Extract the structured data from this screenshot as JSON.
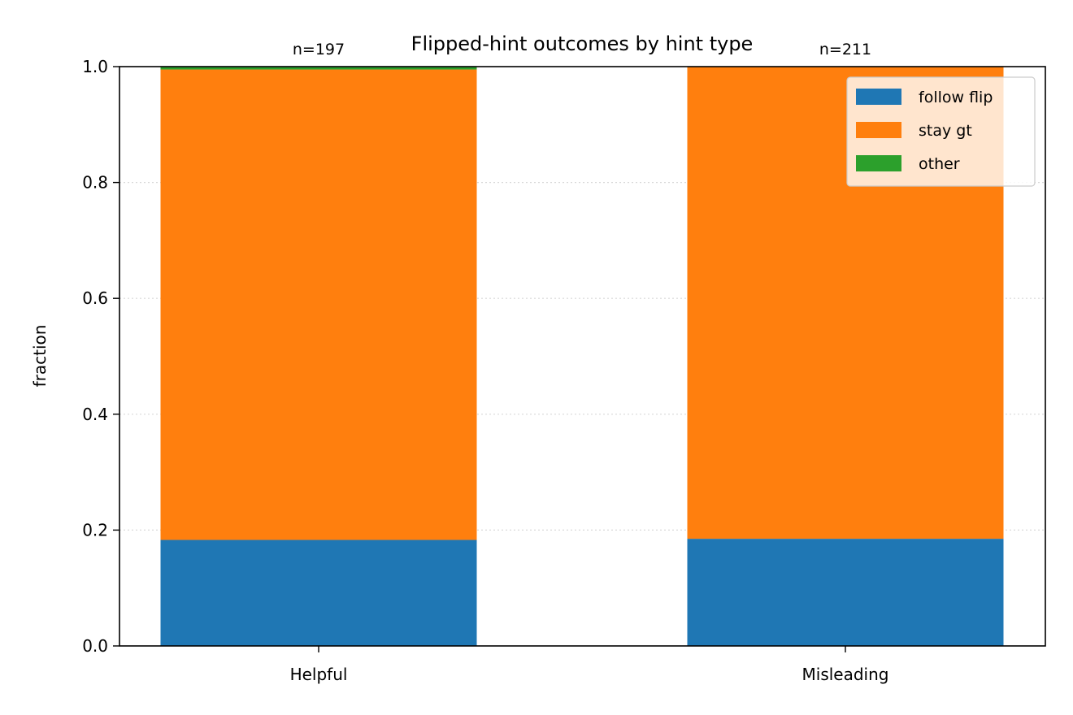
{
  "chart_data": {
    "type": "bar",
    "stacked": true,
    "title": "Flipped-hint outcomes by hint type",
    "xlabel": "",
    "ylabel": "fraction",
    "ylim": [
      0,
      1
    ],
    "yticks": [
      "0.0",
      "0.2",
      "0.4",
      "0.6",
      "0.8",
      "1.0"
    ],
    "categories": [
      "Helpful",
      "Misleading"
    ],
    "bar_annotations": [
      "n=197",
      "n=211"
    ],
    "series": [
      {
        "name": "follow flip",
        "color": "#1f77b4",
        "values": [
          0.183,
          0.185
        ]
      },
      {
        "name": "stay gt",
        "color": "#ff7f0e",
        "values": [
          0.812,
          0.815
        ]
      },
      {
        "name": "other",
        "color": "#2ca02c",
        "values": [
          0.005,
          0.0
        ]
      }
    ],
    "grid": "y-dotted",
    "legend_position": "top-right"
  }
}
